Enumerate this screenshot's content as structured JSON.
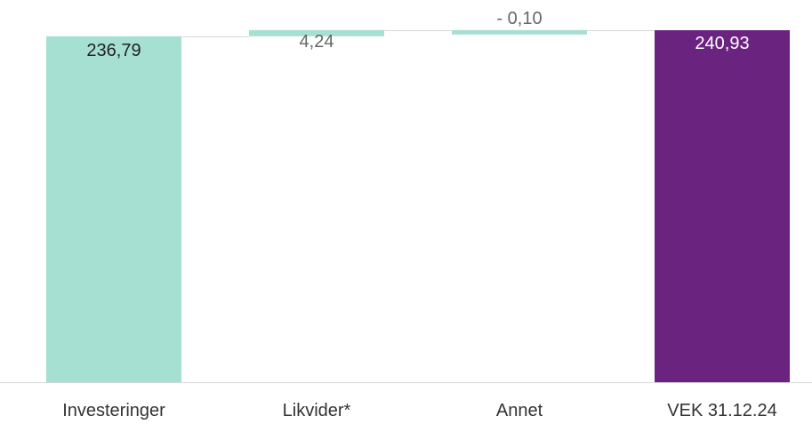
{
  "chart_data": {
    "type": "bar",
    "categories": [
      "Investeringer",
      "Likvider*",
      "Annet",
      "VEK 31.12.24"
    ],
    "values": [
      236.79,
      4.24,
      -0.1,
      240.93
    ],
    "data_labels": [
      "236,79",
      "4,24",
      "- 0,10",
      "240,93"
    ],
    "title": "",
    "xlabel": "",
    "ylabel": "",
    "ylim": [
      0,
      240.93
    ],
    "grid": false,
    "legend": "none"
  },
  "colors": {
    "increase": "#a6e0d2",
    "decrease": "#a6e0d2",
    "total": "#6b2380",
    "connector": "#d9d9d9",
    "axis": "#d9d9d9",
    "label_dark": "#222222",
    "label_gray": "#666666",
    "label_light": "#ffffff",
    "category_text": "#333333"
  }
}
